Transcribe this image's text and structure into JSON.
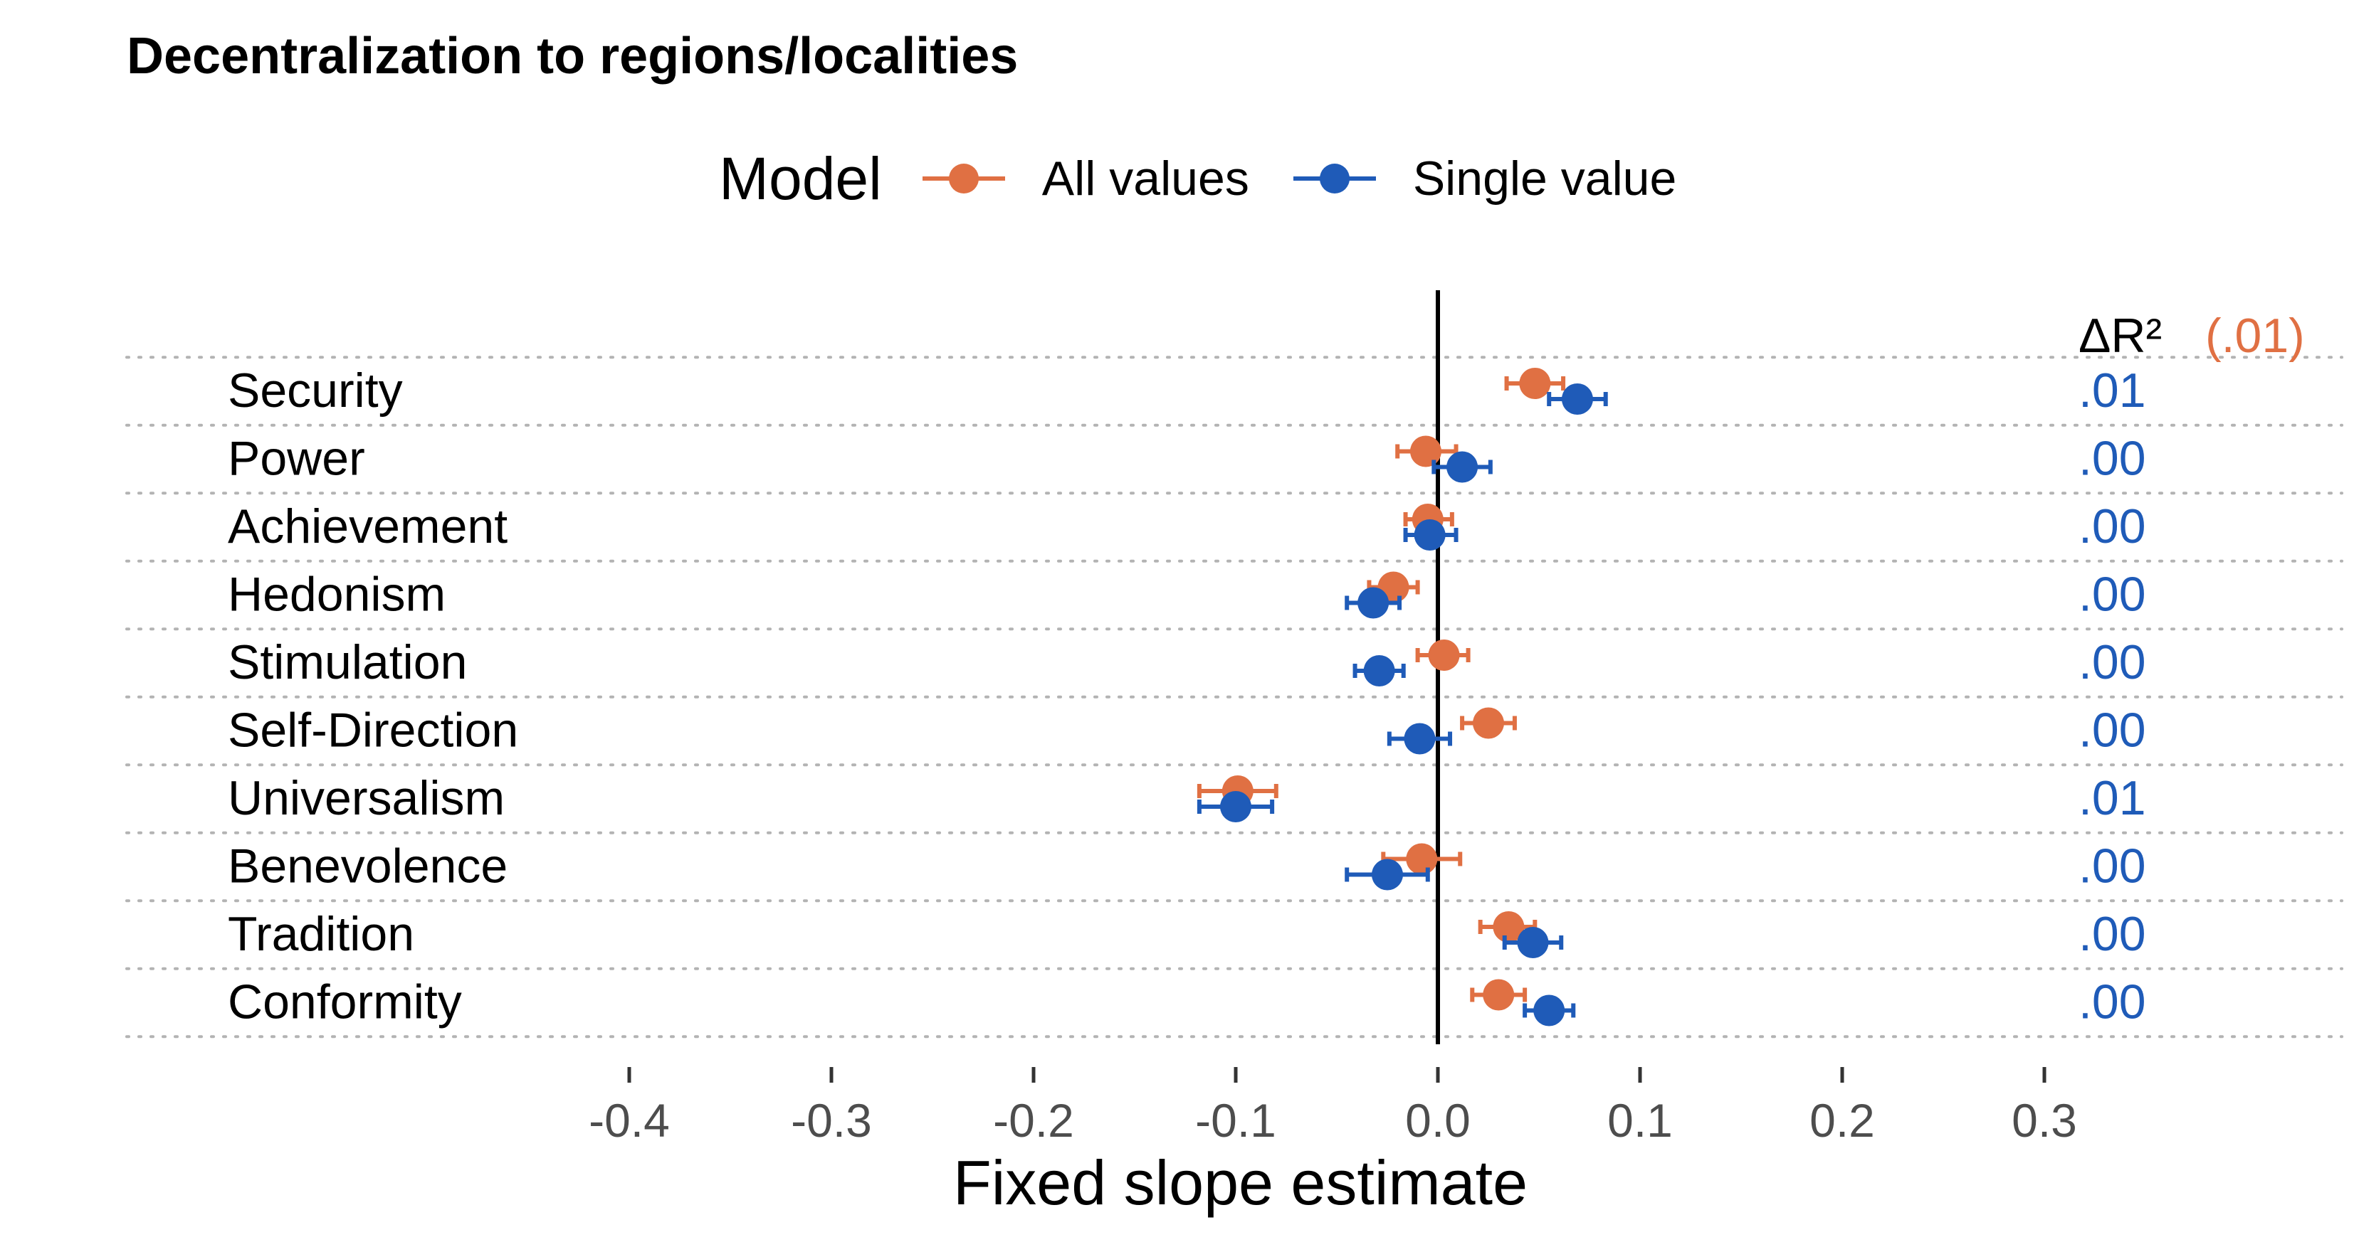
{
  "chart_data": {
    "type": "scatter",
    "title": "Decentralization to regions/localities",
    "xlabel": "Fixed slope estimate",
    "ylabel": "",
    "xlim": [
      -0.43,
      0.33
    ],
    "x_ticks": [
      "-0.4",
      "-0.3",
      "-0.2",
      "-0.1",
      "0.0",
      "0.1",
      "0.2",
      "0.3"
    ],
    "x_tick_values": [
      -0.4,
      -0.3,
      -0.2,
      -0.1,
      0.0,
      0.1,
      0.2,
      0.3
    ],
    "reference_line": 0,
    "grid": "dotted horizontal lines between categories",
    "legend": {
      "title": "Model",
      "position": "top",
      "entries": [
        {
          "name": "All values",
          "color": "#E07043"
        },
        {
          "name": "Single value",
          "color": "#1F5BB8"
        }
      ]
    },
    "categories": [
      "Security",
      "Power",
      "Achievement",
      "Hedonism",
      "Stimulation",
      "Self-Direction",
      "Universalism",
      "Benevolence",
      "Tradition",
      "Conformity"
    ],
    "series": [
      {
        "name": "All values",
        "color": "#E07043",
        "estimates": [
          0.048,
          -0.006,
          -0.005,
          -0.022,
          0.003,
          0.025,
          -0.099,
          -0.008,
          0.035,
          0.03
        ],
        "ci_low": [
          0.034,
          -0.02,
          -0.016,
          -0.034,
          -0.01,
          0.012,
          -0.118,
          -0.027,
          0.021,
          0.017
        ],
        "ci_high": [
          0.062,
          0.009,
          0.007,
          -0.01,
          0.015,
          0.038,
          -0.08,
          0.011,
          0.048,
          0.043
        ]
      },
      {
        "name": "Single value",
        "color": "#1F5BB8",
        "estimates": [
          0.069,
          0.012,
          -0.004,
          -0.032,
          -0.029,
          -0.009,
          -0.1,
          -0.025,
          0.047,
          0.055
        ],
        "ci_low": [
          0.055,
          -0.002,
          -0.016,
          -0.045,
          -0.041,
          -0.024,
          -0.118,
          -0.045,
          0.033,
          0.043
        ],
        "ci_high": [
          0.083,
          0.026,
          0.009,
          -0.019,
          -0.017,
          0.006,
          -0.082,
          -0.005,
          0.061,
          0.067
        ]
      }
    ],
    "delta_r2": {
      "header": "ΔR²",
      "header_color": "#000000",
      "overall": "(.01)",
      "overall_color": "#E07043",
      "values": [
        ".01",
        ".00",
        ".00",
        ".00",
        ".00",
        ".00",
        ".01",
        ".00",
        ".00",
        ".00"
      ],
      "values_color": "#1F5BB8"
    }
  }
}
